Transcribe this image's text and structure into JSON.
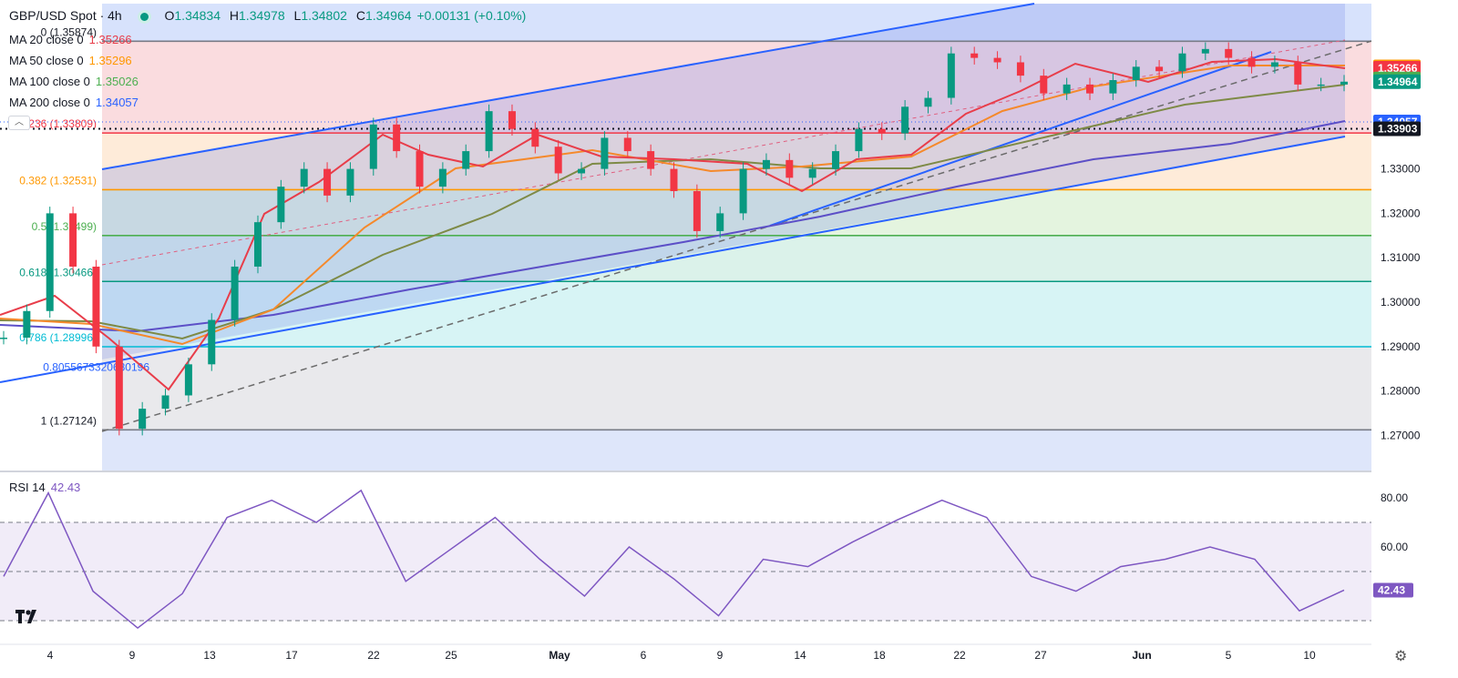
{
  "header": {
    "symbol": "GBP/USD Spot · 4h",
    "open_label": "O",
    "open": "1.34834",
    "high_label": "H",
    "high": "1.34978",
    "low_label": "L",
    "low": "1.34802",
    "close_label": "C",
    "close": "1.34964",
    "change": "+0.00131 (+0.10%)"
  },
  "moving_averages": [
    {
      "label": "MA 20 close 0",
      "value": "1.35266",
      "color": "#e83d4a"
    },
    {
      "label": "MA 50 close 0",
      "value": "1.35296",
      "color": "#ff9800"
    },
    {
      "label": "MA 100 close 0",
      "value": "1.35026",
      "color": "#4caf50"
    },
    {
      "label": "MA 200 close 0",
      "value": "1.34057",
      "color": "#2962ff"
    }
  ],
  "rsi": {
    "label": "RSI 14",
    "value": "42.43",
    "color": "#7e57c2",
    "ticks": [
      "80.00",
      "60.00"
    ],
    "upper": 70,
    "mid": 50,
    "lower": 30
  },
  "price_axis": {
    "ticks": [
      "1.33000",
      "1.32000",
      "1.31000",
      "1.30000",
      "1.29000",
      "1.28000",
      "1.27000"
    ]
  },
  "price_tags": [
    {
      "text": "1.35296",
      "price": 1.35296,
      "color": "#ff9800"
    },
    {
      "text": "1.35266",
      "price": 1.35266,
      "color": "#f23645"
    },
    {
      "text": "1.35026",
      "price": 1.35026,
      "color": "#4caf50"
    },
    {
      "text": "1.34964",
      "price": 1.34964,
      "color": "#089981"
    },
    {
      "text": "1.34057",
      "price": 1.34057,
      "color": "#2962ff"
    },
    {
      "text": "1.33903",
      "price": 1.33903,
      "color": "#131722"
    }
  ],
  "time_axis": {
    "labels": [
      "4",
      "9",
      "13",
      "17",
      "22",
      "25",
      "May",
      "6",
      "9",
      "14",
      "18",
      "22",
      "27",
      "Jun",
      "5",
      "10"
    ]
  },
  "fib_levels": [
    {
      "text": "0 (1.35874)",
      "price": 1.35874,
      "line": "#787b86",
      "fill": "#f8d0d4"
    },
    {
      "text": "0.236 (1.33809)",
      "price": 1.33809,
      "line": "#f23645",
      "fill": "#fde4cc"
    },
    {
      "text": "0.382 (1.32531)",
      "price": 1.32531,
      "line": "#ff9800",
      "fill": "#dbf0d4"
    },
    {
      "text": "0.5 (1.31499)",
      "price": 1.31499,
      "line": "#4caf50",
      "fill": "#cfeee3"
    },
    {
      "text": "0.618 (1.30466)",
      "price": 1.30466,
      "line": "#089981",
      "fill": "#c9f0f2"
    },
    {
      "text": "0.786 (1.28996)",
      "price": 1.28996,
      "line": "#00bcd4",
      "fill": "#e1e2e6"
    },
    {
      "text": "0.8055673320630196",
      "price": 1.28825,
      "line": "#787b86",
      "fill": "#e1e2e6"
    },
    {
      "text": "1 (1.27124)",
      "price": 1.27124,
      "line": "#787b86",
      "fill": "#d3def8"
    }
  ],
  "colors": {
    "up": "#089981",
    "down": "#f23645",
    "channel": "#2962ff"
  },
  "chart_data": {
    "type": "candlestick",
    "title": "GBP/USD Spot · 4h",
    "ylim": [
      1.262,
      1.362
    ],
    "x": [
      "4",
      "9",
      "13",
      "17",
      "22",
      "25",
      "May",
      "6",
      "9",
      "14",
      "18",
      "22",
      "27",
      "Jun",
      "5",
      "10"
    ],
    "close_path": [
      {
        "x": "start",
        "y": 1.292
      },
      {
        "x": "2",
        "y": 1.298
      },
      {
        "x": "3",
        "y": 1.32
      },
      {
        "x": "4",
        "y": 1.308
      },
      {
        "x": "5",
        "y": 1.29
      },
      {
        "x": "7",
        "y": 1.2715
      },
      {
        "x": "8",
        "y": 1.276
      },
      {
        "x": "9",
        "y": 1.279
      },
      {
        "x": "10",
        "y": 1.286
      },
      {
        "x": "11",
        "y": 1.296
      },
      {
        "x": "12",
        "y": 1.308
      },
      {
        "x": "13",
        "y": 1.318
      },
      {
        "x": "15",
        "y": 1.326
      },
      {
        "x": "16",
        "y": 1.33
      },
      {
        "x": "17",
        "y": 1.324
      },
      {
        "x": "19",
        "y": 1.33
      },
      {
        "x": "20",
        "y": 1.34
      },
      {
        "x": "22",
        "y": 1.334
      },
      {
        "x": "23",
        "y": 1.326
      },
      {
        "x": "25",
        "y": 1.33
      },
      {
        "x": "26",
        "y": 1.334
      },
      {
        "x": "27",
        "y": 1.343
      },
      {
        "x": "28",
        "y": 1.339
      },
      {
        "x": "May",
        "y": 1.335
      },
      {
        "x": "2",
        "y": 1.329
      },
      {
        "x": "5",
        "y": 1.33
      },
      {
        "x": "6",
        "y": 1.337
      },
      {
        "x": "7",
        "y": 1.334
      },
      {
        "x": "8",
        "y": 1.33
      },
      {
        "x": "9",
        "y": 1.325
      },
      {
        "x": "11",
        "y": 1.316
      },
      {
        "x": "12",
        "y": 1.32
      },
      {
        "x": "13",
        "y": 1.33
      },
      {
        "x": "14",
        "y": 1.332
      },
      {
        "x": "15",
        "y": 1.328
      },
      {
        "x": "16",
        "y": 1.33
      },
      {
        "x": "18",
        "y": 1.334
      },
      {
        "x": "19",
        "y": 1.339
      },
      {
        "x": "20",
        "y": 1.338
      },
      {
        "x": "21",
        "y": 1.344
      },
      {
        "x": "22",
        "y": 1.346
      },
      {
        "x": "24",
        "y": 1.356
      },
      {
        "x": "25",
        "y": 1.355
      },
      {
        "x": "26",
        "y": 1.354
      },
      {
        "x": "27",
        "y": 1.351
      },
      {
        "x": "28",
        "y": 1.347
      },
      {
        "x": "30",
        "y": 1.349
      },
      {
        "x": "31",
        "y": 1.347
      },
      {
        "x": "Jun",
        "y": 1.35
      },
      {
        "x": "2",
        "y": 1.353
      },
      {
        "x": "3",
        "y": 1.352
      },
      {
        "x": "4",
        "y": 1.356
      },
      {
        "x": "5",
        "y": 1.357
      },
      {
        "x": "6",
        "y": 1.355
      },
      {
        "x": "8",
        "y": 1.353
      },
      {
        "x": "9",
        "y": 1.354
      },
      {
        "x": "10",
        "y": 1.349
      },
      {
        "x": "11",
        "y": 1.349
      },
      {
        "x": "11 end",
        "y": 1.34964
      }
    ],
    "rsi_path": [
      {
        "x": "start",
        "y": 48
      },
      {
        "x": "3",
        "y": 82
      },
      {
        "x": "5",
        "y": 42
      },
      {
        "x": "7",
        "y": 27
      },
      {
        "x": "9",
        "y": 41
      },
      {
        "x": "12",
        "y": 72
      },
      {
        "x": "17",
        "y": 79
      },
      {
        "x": "19",
        "y": 70
      },
      {
        "x": "21",
        "y": 83
      },
      {
        "x": "23",
        "y": 46
      },
      {
        "x": "26",
        "y": 59
      },
      {
        "x": "27",
        "y": 72
      },
      {
        "x": "May",
        "y": 55
      },
      {
        "x": "2",
        "y": 40
      },
      {
        "x": "6",
        "y": 60
      },
      {
        "x": "9",
        "y": 47
      },
      {
        "x": "11",
        "y": 32
      },
      {
        "x": "13",
        "y": 55
      },
      {
        "x": "16",
        "y": 52
      },
      {
        "x": "18",
        "y": 62
      },
      {
        "x": "21",
        "y": 71
      },
      {
        "x": "24",
        "y": 79
      },
      {
        "x": "26",
        "y": 72
      },
      {
        "x": "27",
        "y": 48
      },
      {
        "x": "30",
        "y": 42
      },
      {
        "x": "Jun",
        "y": 52
      },
      {
        "x": "3",
        "y": 55
      },
      {
        "x": "5",
        "y": 60
      },
      {
        "x": "9",
        "y": 55
      },
      {
        "x": "10",
        "y": 34
      },
      {
        "x": "11",
        "y": 42.43
      }
    ]
  }
}
